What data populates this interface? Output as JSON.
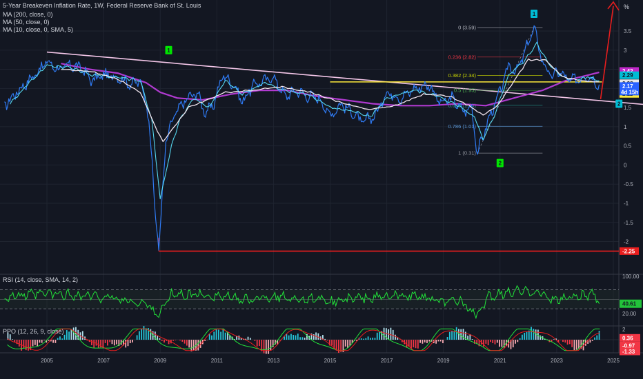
{
  "header": {
    "title": "5-Year Breakeven Inflation Rate, 1W, Federal Reserve Bank of St. Louis",
    "indicators": [
      "MA (200, close, 0)",
      "MA (50, close, 0)",
      "MA (10, close, 0, SMA, 5)"
    ],
    "unit_badge": "%"
  },
  "chart_data": [
    {
      "type": "line",
      "x_ticks": [
        "2005",
        "2007",
        "2009",
        "2011",
        "2013",
        "2015",
        "2017",
        "2019",
        "2021",
        "2023",
        "2025"
      ],
      "y_ticks": [
        "3.5",
        "3",
        "2.5",
        "2",
        "1.5",
        "1",
        "0.5",
        "0",
        "-0.5",
        "-1",
        "-1.5",
        "-2"
      ],
      "ylim": [
        -2.45,
        4.15
      ],
      "series": [
        {
          "points": [
            [
              2003.5,
              1.55
            ],
            [
              2004.0,
              1.95
            ],
            [
              2004.5,
              2.3
            ],
            [
              2005.0,
              2.7
            ],
            [
              2005.4,
              2.5
            ],
            [
              2005.8,
              2.6
            ],
            [
              2006.2,
              2.55
            ],
            [
              2006.6,
              2.2
            ],
            [
              2007.0,
              2.35
            ],
            [
              2007.5,
              2.3
            ],
            [
              2008.0,
              2.1
            ],
            [
              2008.3,
              2.2
            ],
            [
              2008.6,
              1.3
            ],
            [
              2008.8,
              -1.0
            ],
            [
              2008.95,
              -2.2
            ],
            [
              2009.2,
              0.6
            ],
            [
              2009.5,
              1.3
            ],
            [
              2009.9,
              1.7
            ],
            [
              2010.3,
              1.9
            ],
            [
              2010.6,
              1.35
            ],
            [
              2010.9,
              1.6
            ],
            [
              2011.2,
              2.35
            ],
            [
              2011.6,
              2.1
            ],
            [
              2011.9,
              1.65
            ],
            [
              2012.3,
              2.1
            ],
            [
              2012.7,
              2.2
            ],
            [
              2013.0,
              2.3
            ],
            [
              2013.4,
              1.8
            ],
            [
              2013.8,
              1.95
            ],
            [
              2014.2,
              1.8
            ],
            [
              2014.6,
              1.75
            ],
            [
              2015.0,
              1.3
            ],
            [
              2015.4,
              1.6
            ],
            [
              2015.9,
              1.3
            ],
            [
              2016.1,
              1.1
            ],
            [
              2016.6,
              1.3
            ],
            [
              2017.0,
              1.9
            ],
            [
              2017.5,
              1.75
            ],
            [
              2018.0,
              2.0
            ],
            [
              2018.5,
              2.1
            ],
            [
              2018.9,
              1.6
            ],
            [
              2019.3,
              1.75
            ],
            [
              2019.7,
              1.4
            ],
            [
              2020.0,
              1.5
            ],
            [
              2020.2,
              0.3
            ],
            [
              2020.6,
              1.2
            ],
            [
              2021.0,
              1.9
            ],
            [
              2021.3,
              2.6
            ],
            [
              2021.6,
              2.45
            ],
            [
              2021.9,
              3.0
            ],
            [
              2022.2,
              3.58
            ],
            [
              2022.5,
              2.7
            ],
            [
              2022.8,
              2.3
            ],
            [
              2023.1,
              2.45
            ],
            [
              2023.4,
              2.2
            ],
            [
              2023.8,
              2.25
            ],
            [
              2024.1,
              2.35
            ],
            [
              2024.5,
              2.1
            ]
          ]
        },
        {
          "name": "MA (10, close, 0, SMA, 5)",
          "points": [
            [
              2003.7,
              1.6
            ],
            [
              2004.3,
              2.1
            ],
            [
              2005.0,
              2.6
            ],
            [
              2005.8,
              2.55
            ],
            [
              2006.6,
              2.35
            ],
            [
              2007.5,
              2.3
            ],
            [
              2008.3,
              2.2
            ],
            [
              2008.7,
              1.2
            ],
            [
              2009.0,
              -0.9
            ],
            [
              2009.4,
              0.5
            ],
            [
              2009.7,
              1.2
            ],
            [
              2010.2,
              1.75
            ],
            [
              2010.7,
              1.5
            ],
            [
              2011.3,
              2.2
            ],
            [
              2011.9,
              1.85
            ],
            [
              2012.7,
              2.15
            ],
            [
              2013.4,
              1.95
            ],
            [
              2014.2,
              1.85
            ],
            [
              2015.0,
              1.5
            ],
            [
              2015.9,
              1.4
            ],
            [
              2016.4,
              1.25
            ],
            [
              2017.0,
              1.75
            ],
            [
              2018.0,
              1.95
            ],
            [
              2018.8,
              1.8
            ],
            [
              2019.5,
              1.55
            ],
            [
              2020.1,
              1.25
            ],
            [
              2020.4,
              0.65
            ],
            [
              2020.8,
              1.3
            ],
            [
              2021.3,
              2.35
            ],
            [
              2021.9,
              2.75
            ],
            [
              2022.3,
              3.2
            ],
            [
              2022.7,
              2.65
            ],
            [
              2023.1,
              2.35
            ],
            [
              2023.6,
              2.22
            ],
            [
              2024.1,
              2.3
            ],
            [
              2024.5,
              2.2
            ]
          ]
        },
        {
          "name": "MA (50, close, 0)",
          "points": [
            [
              2005.5,
              2.5
            ],
            [
              2006.5,
              2.45
            ],
            [
              2007.5,
              2.25
            ],
            [
              2008.3,
              1.9
            ],
            [
              2008.8,
              1.05
            ],
            [
              2009.1,
              0.6
            ],
            [
              2009.5,
              1.0
            ],
            [
              2010.0,
              1.5
            ],
            [
              2010.5,
              1.65
            ],
            [
              2011.3,
              1.9
            ],
            [
              2012.3,
              1.95
            ],
            [
              2013.3,
              2.05
            ],
            [
              2014.3,
              1.9
            ],
            [
              2015.3,
              1.65
            ],
            [
              2016.3,
              1.45
            ],
            [
              2017.3,
              1.55
            ],
            [
              2018.3,
              1.85
            ],
            [
              2019.2,
              1.8
            ],
            [
              2019.9,
              1.55
            ],
            [
              2020.4,
              1.3
            ],
            [
              2020.9,
              1.55
            ],
            [
              2021.5,
              2.2
            ],
            [
              2022.0,
              2.75
            ],
            [
              2022.6,
              2.75
            ],
            [
              2023.2,
              2.3
            ],
            [
              2023.8,
              2.2
            ],
            [
              2024.5,
              2.17
            ]
          ]
        },
        {
          "name": "MA (200, close, 0)",
          "points": [
            [
              2005.5,
              2.65
            ],
            [
              2006.5,
              2.5
            ],
            [
              2007.5,
              2.4
            ],
            [
              2008.5,
              2.15
            ],
            [
              2009.0,
              1.9
            ],
            [
              2009.6,
              1.75
            ],
            [
              2010.5,
              1.7
            ],
            [
              2011.5,
              1.85
            ],
            [
              2012.5,
              1.95
            ],
            [
              2013.5,
              1.95
            ],
            [
              2014.5,
              1.8
            ],
            [
              2015.5,
              1.7
            ],
            [
              2016.5,
              1.6
            ],
            [
              2017.5,
              1.55
            ],
            [
              2018.5,
              1.55
            ],
            [
              2019.5,
              1.6
            ],
            [
              2020.5,
              1.55
            ],
            [
              2021.5,
              1.75
            ],
            [
              2022.5,
              1.95
            ],
            [
              2023.3,
              2.2
            ],
            [
              2024.5,
              2.42
            ]
          ]
        }
      ],
      "price_tags": [
        {
          "value": 2.42,
          "label": "2.42",
          "color": "#c028c8"
        },
        {
          "value": 2.29,
          "label": "2.29",
          "color": "#00bcd4"
        },
        {
          "value": 2.28,
          "label": "2.28",
          "color": "#e8e8e8"
        },
        {
          "value": 2.17,
          "label": "2.17",
          "color": "#2962ff"
        },
        {
          "value": 2.11,
          "label": "2.11",
          "color": "#ffeb3b"
        },
        {
          "value": -2.25,
          "label": "-2.25",
          "color": "#e91e1e"
        }
      ],
      "countdown": "4d 15h",
      "fibonacci": [
        {
          "ratio": "0",
          "value": 3.59,
          "label": "0 (3.59)",
          "color": "#b2b5be"
        },
        {
          "ratio": "0.236",
          "value": 2.82,
          "label": "0.236 (2.82)",
          "color": "#f23645"
        },
        {
          "ratio": "0.382",
          "value": 2.34,
          "label": "0.382 (2.34)",
          "color": "#c9d600"
        },
        {
          "ratio": "0.5",
          "value": 1.95,
          "label": "0.5 (1.95)",
          "color": "#4caf50"
        },
        {
          "ratio": "0.618",
          "value": 1.56,
          "label": "0.618 (1.56)",
          "color": "#26a69a"
        },
        {
          "ratio": "0.786",
          "value": 1.01,
          "label": "0.786 (1.01)",
          "color": "#5d9ad9"
        },
        {
          "ratio": "1",
          "value": 0.31,
          "label": "1 (0.31)",
          "color": "#9598a1"
        }
      ],
      "wave_labels": [
        {
          "label": "1",
          "x": 2009.3,
          "y": 3.0,
          "color": "#00e600"
        },
        {
          "label": "2",
          "x": 2021.0,
          "y": 0.05,
          "color": "#00e600"
        },
        {
          "label": "1",
          "x": 2022.2,
          "y": 3.95,
          "color": "#00bcd4"
        },
        {
          "label": "2",
          "x": 2025.2,
          "y": 1.6,
          "color": "#00bcd4"
        }
      ]
    },
    {
      "type": "line",
      "title": "RSI (14, close, SMA, 14, 2)",
      "y_ticks": [
        "100.00",
        "20.00"
      ],
      "last_label": "40.61"
    },
    {
      "type": "bar",
      "title": "PPO (12, 26, 9, close)",
      "y_ticks": [
        "2",
        "0",
        "-2"
      ],
      "last_labels": [
        {
          "label": "0.36",
          "color": "#f23645"
        },
        {
          "label": "-0.97",
          "color": "#f23645"
        },
        {
          "label": "-1.33",
          "color": "#f23645"
        }
      ]
    }
  ]
}
